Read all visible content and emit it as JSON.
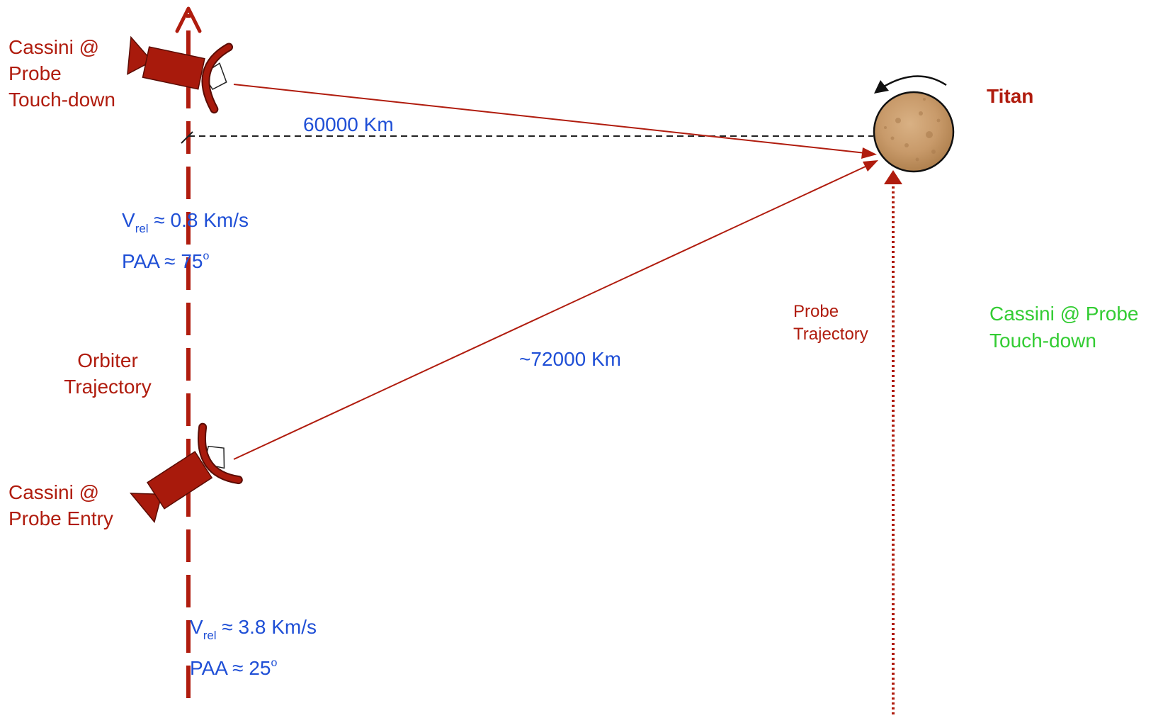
{
  "labels": {
    "cassini_touchdown": [
      "Cassini @",
      "Probe",
      "Touch-down"
    ],
    "cassini_entry": [
      "Cassini @",
      "Probe Entry"
    ],
    "titan": "Titan",
    "distance_touchdown": "60000 Km",
    "distance_entry": "~72000 Km",
    "orbiter_trajectory": [
      "Orbiter",
      "Trajectory"
    ],
    "probe_trajectory": [
      "Probe",
      "Trajectory"
    ],
    "green_note": [
      "Cassini @ Probe",
      "Touch-down"
    ],
    "touchdown_vrel": {
      "symbol": "V",
      "subscript": "rel",
      "rest": " ≈ 0.8 Km/s"
    },
    "touchdown_paa": {
      "text": "PAA ≈ 75",
      "superscript": "o"
    },
    "entry_vrel": {
      "symbol": "V",
      "subscript": "rel",
      "rest": " ≈ 3.8 Km/s"
    },
    "entry_paa": {
      "text": "PAA ≈ 25",
      "superscript": "o"
    }
  },
  "colors": {
    "trajectory": "#b01c0e",
    "spacecraft": "#a81a0c",
    "blue_text": "#1f4fd6",
    "green_text": "#33cc33",
    "titan_fill": "#c89a6a"
  },
  "icons": {
    "spacecraft": "spacecraft-icon",
    "titan": "planet-icon",
    "rotation": "curved-arrow-icon"
  }
}
